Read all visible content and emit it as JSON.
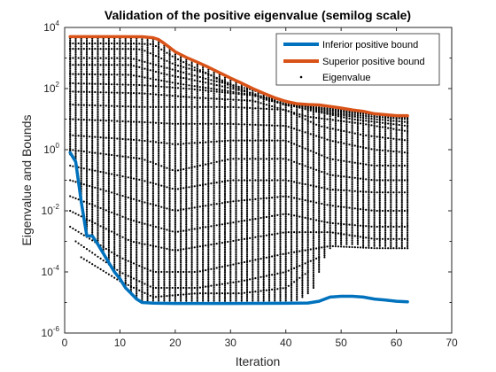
{
  "chart_data": {
    "type": "line",
    "title": "Validation of the positive eigenvalue (semilog scale)",
    "xlabel": "Iteration",
    "ylabel": "Eigenvalue and Bounds",
    "xlim": [
      0,
      70
    ],
    "ylim": [
      1e-06,
      10000.0
    ],
    "yscale": "log",
    "x_ticks": [
      "0",
      "10",
      "20",
      "30",
      "40",
      "50",
      "60",
      "70"
    ],
    "y_ticks": [
      {
        "base": "10",
        "exp": "4"
      },
      {
        "base": "10",
        "exp": "2"
      },
      {
        "base": "10",
        "exp": "0"
      },
      {
        "base": "10",
        "exp": "-2"
      },
      {
        "base": "10",
        "exp": "-4"
      },
      {
        "base": "10",
        "exp": "-6"
      }
    ],
    "grid": false,
    "legend_position": "top-right",
    "series": [
      {
        "name": "Inferior positive bound",
        "color": "#0072BD",
        "style": "line",
        "points": [
          [
            1,
            0.8
          ],
          [
            2,
            0.4
          ],
          [
            3,
            0.02
          ],
          [
            4,
            0.0015
          ],
          [
            5,
            0.0015
          ],
          [
            6,
            0.0008
          ],
          [
            7,
            0.0004
          ],
          [
            8,
            0.0002
          ],
          [
            9,
            0.0001
          ],
          [
            10,
            6e-05
          ],
          [
            11,
            3e-05
          ],
          [
            12,
            2e-05
          ],
          [
            13,
            1.3e-05
          ],
          [
            14,
            1e-05
          ],
          [
            16,
            9.5e-06
          ],
          [
            20,
            9.3e-06
          ],
          [
            30,
            9.3e-06
          ],
          [
            40,
            9.4e-06
          ],
          [
            42,
            9.5e-06
          ],
          [
            44,
            9.6e-06
          ],
          [
            46,
            1.1e-05
          ],
          [
            48,
            1.5e-05
          ],
          [
            50,
            1.6e-05
          ],
          [
            52,
            1.6e-05
          ],
          [
            54,
            1.5e-05
          ],
          [
            56,
            1.3e-05
          ],
          [
            58,
            1.2e-05
          ],
          [
            60,
            1.1e-05
          ],
          [
            62,
            1.05e-05
          ]
        ]
      },
      {
        "name": "Superior positive bound",
        "color": "#D95319",
        "style": "line",
        "points": [
          [
            1,
            5000
          ],
          [
            10,
            5000
          ],
          [
            14,
            4950
          ],
          [
            16,
            4600
          ],
          [
            17,
            4000
          ],
          [
            18,
            3000
          ],
          [
            19,
            2200
          ],
          [
            20,
            1600
          ],
          [
            22,
            1050
          ],
          [
            24,
            730
          ],
          [
            26,
            500
          ],
          [
            28,
            330
          ],
          [
            30,
            220
          ],
          [
            32,
            150
          ],
          [
            34,
            100
          ],
          [
            36,
            70
          ],
          [
            38,
            50
          ],
          [
            40,
            38
          ],
          [
            42,
            32
          ],
          [
            44,
            30
          ],
          [
            46,
            29
          ],
          [
            48,
            26
          ],
          [
            50,
            23
          ],
          [
            52,
            20
          ],
          [
            54,
            18
          ],
          [
            56,
            15
          ],
          [
            58,
            14
          ],
          [
            60,
            13
          ],
          [
            62,
            13
          ]
        ]
      },
      {
        "name": "Eigenvalue",
        "color": "#000000",
        "style": "marker",
        "tracks": [
          [
            [
              1,
              3000
            ],
            [
              10,
              3000
            ],
            [
              13,
              2990
            ],
            [
              16,
              2800
            ],
            [
              20,
              1000
            ],
            [
              24,
              440
            ],
            [
              30,
              140
            ],
            [
              36,
              45
            ],
            [
              40,
              30
            ],
            [
              44,
              26
            ],
            [
              48,
              22
            ],
            [
              52,
              19
            ],
            [
              56,
              15
            ],
            [
              60,
              13
            ],
            [
              62,
              13
            ]
          ],
          [
            [
              1,
              2000
            ],
            [
              12,
              1990
            ],
            [
              14,
              1900
            ],
            [
              20,
              600
            ],
            [
              26,
              300
            ],
            [
              30,
              120
            ],
            [
              40,
              28
            ],
            [
              44,
              25
            ],
            [
              48,
              20
            ],
            [
              56,
              15
            ],
            [
              62,
              12
            ]
          ],
          [
            [
              1,
              1000
            ],
            [
              12,
              990
            ],
            [
              18,
              500
            ],
            [
              26,
              200
            ],
            [
              34,
              90
            ],
            [
              40,
              35
            ],
            [
              48,
              18
            ],
            [
              56,
              14
            ],
            [
              62,
              11
            ]
          ],
          [
            [
              1,
              600
            ],
            [
              12,
              590
            ],
            [
              18,
              300
            ],
            [
              26,
              150
            ],
            [
              34,
              70
            ],
            [
              40,
              30
            ],
            [
              48,
              16
            ],
            [
              56,
              12
            ],
            [
              62,
              10
            ]
          ],
          [
            [
              1,
              300
            ],
            [
              12,
              280
            ],
            [
              20,
              150
            ],
            [
              30,
              80
            ],
            [
              40,
              40
            ],
            [
              48,
              15
            ],
            [
              56,
              10
            ],
            [
              62,
              8
            ]
          ],
          [
            [
              1,
              150
            ],
            [
              14,
              130
            ],
            [
              22,
              100
            ],
            [
              34,
              60
            ],
            [
              44,
              20
            ],
            [
              52,
              10
            ],
            [
              62,
              6
            ]
          ],
          [
            [
              1,
              80
            ],
            [
              14,
              70
            ],
            [
              24,
              50
            ],
            [
              34,
              40
            ],
            [
              44,
              12
            ],
            [
              54,
              7
            ],
            [
              62,
              4
            ]
          ],
          [
            [
              1,
              30
            ],
            [
              14,
              25
            ],
            [
              22,
              25
            ],
            [
              30,
              25
            ],
            [
              40,
              20
            ],
            [
              46,
              6
            ],
            [
              54,
              3
            ],
            [
              62,
              2
            ]
          ],
          [
            [
              1,
              10
            ],
            [
              14,
              8
            ],
            [
              20,
              7
            ],
            [
              30,
              7
            ],
            [
              40,
              6
            ],
            [
              48,
              2
            ],
            [
              56,
              1
            ],
            [
              62,
              0.8
            ]
          ],
          [
            [
              1,
              3
            ],
            [
              14,
              2
            ],
            [
              20,
              1.5
            ],
            [
              30,
              2
            ],
            [
              40,
              2
            ],
            [
              48,
              0.5
            ],
            [
              56,
              0.3
            ],
            [
              62,
              0.3
            ]
          ],
          [
            [
              1,
              1
            ],
            [
              14,
              0.5
            ],
            [
              20,
              0.2
            ],
            [
              30,
              0.5
            ],
            [
              40,
              0.5
            ],
            [
              48,
              0.15
            ],
            [
              56,
              0.1
            ],
            [
              62,
              0.1
            ]
          ],
          [
            [
              1,
              0.3
            ],
            [
              14,
              0.1
            ],
            [
              20,
              0.05
            ],
            [
              30,
              0.1
            ],
            [
              40,
              0.1
            ],
            [
              48,
              0.05
            ],
            [
              56,
              0.04
            ],
            [
              62,
              0.04
            ]
          ],
          [
            [
              1,
              0.1
            ],
            [
              14,
              0.02
            ],
            [
              20,
              0.01
            ],
            [
              30,
              0.02
            ],
            [
              40,
              0.03
            ],
            [
              48,
              0.015
            ],
            [
              56,
              0.01
            ],
            [
              62,
              0.01
            ]
          ],
          [
            [
              1,
              0.03
            ],
            [
              12,
              0.005
            ],
            [
              20,
              0.002
            ],
            [
              30,
              0.004
            ],
            [
              40,
              0.008
            ],
            [
              48,
              0.004
            ],
            [
              56,
              0.003
            ],
            [
              62,
              0.003
            ]
          ],
          [
            [
              1,
              0.01
            ],
            [
              12,
              0.001
            ],
            [
              20,
              0.0005
            ],
            [
              30,
              0.001
            ],
            [
              40,
              0.002
            ],
            [
              48,
              0.002
            ],
            [
              56,
              0.0012
            ],
            [
              62,
              0.0012
            ]
          ],
          [
            [
              1,
              0.003
            ],
            [
              10,
              0.0003
            ],
            [
              16,
              0.0001
            ],
            [
              24,
              0.0001
            ],
            [
              32,
              0.0002
            ],
            [
              40,
              0.0004
            ],
            [
              48,
              0.0007
            ],
            [
              56,
              0.0006
            ],
            [
              62,
              0.0006
            ]
          ],
          [
            [
              2,
              0.001
            ],
            [
              10,
              0.0001
            ],
            [
              16,
              3e-05
            ],
            [
              24,
              3e-05
            ],
            [
              32,
              5e-05
            ],
            [
              40,
              0.0001
            ],
            [
              46,
              0.0003
            ]
          ],
          [
            [
              3,
              0.0003
            ],
            [
              10,
              5e-05
            ],
            [
              16,
              1.5e-05
            ],
            [
              24,
              2e-05
            ],
            [
              32,
              2e-05
            ],
            [
              40,
              3e-05
            ],
            [
              44,
              0.0001
            ]
          ]
        ],
        "columns": [
          [
            1,
            0.7,
            5000
          ],
          [
            2,
            0.35,
            4900
          ],
          [
            3,
            0.02,
            4900
          ],
          [
            4,
            0.0015,
            4900
          ],
          [
            5,
            0.0015,
            4900
          ],
          [
            6,
            0.0008,
            4900
          ],
          [
            7,
            0.0004,
            4900
          ],
          [
            8,
            0.0002,
            4900
          ],
          [
            9,
            0.0001,
            4900
          ],
          [
            10,
            6e-05,
            4900
          ],
          [
            11,
            3e-05,
            4900
          ],
          [
            12,
            2e-05,
            4900
          ],
          [
            13,
            1.3e-05,
            4900
          ],
          [
            14,
            1e-05,
            4800
          ],
          [
            15,
            1e-05,
            4500
          ],
          [
            16,
            1e-05,
            4200
          ],
          [
            17,
            1e-05,
            3700
          ],
          [
            18,
            1e-05,
            2900
          ],
          [
            19,
            1e-05,
            2100
          ],
          [
            20,
            1e-05,
            1500
          ],
          [
            21,
            1e-05,
            1200
          ],
          [
            22,
            1e-05,
            1000
          ],
          [
            23,
            1e-05,
            800
          ],
          [
            24,
            1e-05,
            700
          ],
          [
            25,
            1e-05,
            560
          ],
          [
            26,
            1e-05,
            480
          ],
          [
            27,
            1e-05,
            390
          ],
          [
            28,
            1e-05,
            320
          ],
          [
            29,
            1e-05,
            260
          ],
          [
            30,
            1e-05,
            210
          ],
          [
            31,
            1e-05,
            180
          ],
          [
            32,
            1e-05,
            140
          ],
          [
            33,
            1e-05,
            120
          ],
          [
            34,
            1e-05,
            100
          ],
          [
            35,
            1e-05,
            80
          ],
          [
            36,
            1e-05,
            68
          ],
          [
            37,
            1e-05,
            58
          ],
          [
            38,
            1e-05,
            48
          ],
          [
            39,
            1e-05,
            42
          ],
          [
            40,
            1e-05,
            36
          ],
          [
            41,
            1e-05,
            32
          ],
          [
            42,
            1.2e-05,
            31
          ],
          [
            43,
            1.5e-05,
            30
          ],
          [
            44,
            2e-05,
            29
          ],
          [
            45,
            3e-05,
            29
          ],
          [
            46,
            0.0001,
            28
          ],
          [
            47,
            0.0003,
            26
          ],
          [
            48,
            0.0006,
            25
          ],
          [
            49,
            0.0008,
            23
          ],
          [
            50,
            0.0008,
            22
          ],
          [
            51,
            0.0008,
            21
          ],
          [
            52,
            0.0008,
            20
          ],
          [
            53,
            0.0008,
            18
          ],
          [
            54,
            0.0007,
            17
          ],
          [
            55,
            0.0007,
            16
          ],
          [
            56,
            0.0007,
            15
          ],
          [
            57,
            0.0007,
            14
          ],
          [
            58,
            0.0007,
            14
          ],
          [
            59,
            0.0006,
            13
          ],
          [
            60,
            0.0006,
            13
          ],
          [
            61,
            0.0006,
            13
          ],
          [
            62,
            0.0006,
            13
          ]
        ]
      }
    ]
  }
}
